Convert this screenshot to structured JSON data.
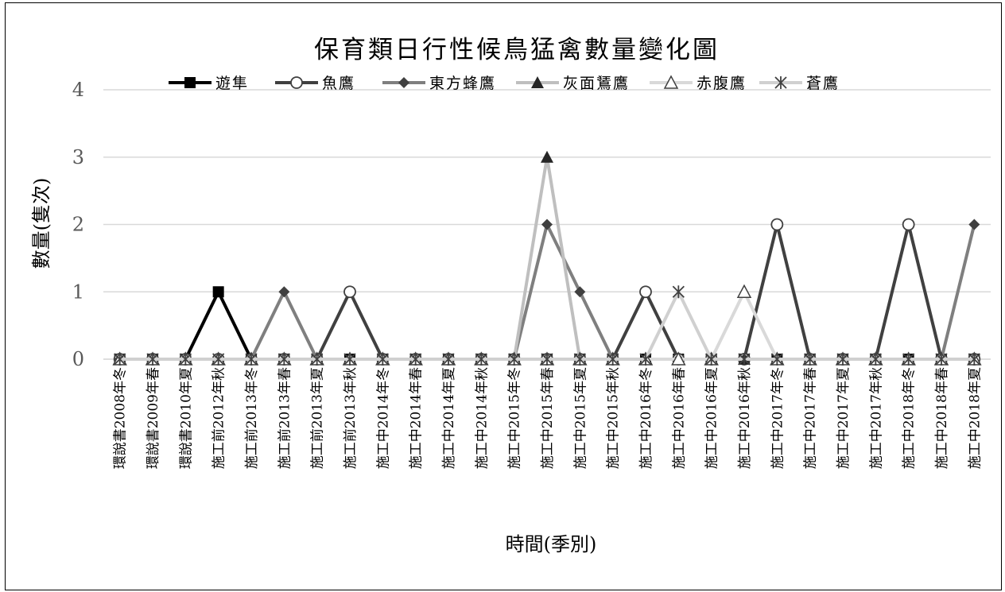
{
  "chart_data": {
    "type": "line",
    "title": "保育類日行性候鳥猛禽數量變化圖",
    "xlabel": "時間(季別)",
    "ylabel": "數量(隻次)",
    "ylim": [
      0,
      4
    ],
    "yticks": [
      "0",
      "1",
      "2",
      "3",
      "4"
    ],
    "grid": true,
    "legend_position": "top",
    "categories": [
      "環說書2008年冬",
      "環說書2009年春",
      "環說書2010年夏",
      "施工前2012年秋",
      "施工前2013年冬",
      "施工前2013年春",
      "施工前2013年夏",
      "施工前2013年秋",
      "施工中2014年冬",
      "施工中2014年春",
      "施工中2014年夏",
      "施工中2014年秋",
      "施工中2015年冬",
      "施工中2015年春",
      "施工中2015年夏",
      "施工中2015年秋",
      "施工中2016年冬",
      "施工中2016年春",
      "施工中2016年夏",
      "施工中2016年秋",
      "施工中2017年冬",
      "施工中2017年春",
      "施工中2017年夏",
      "施工中2017年秋",
      "施工中2018年冬",
      "施工中2018年春",
      "施工中2018年夏"
    ],
    "series": [
      {
        "name": "遊隼",
        "color": "#000000",
        "marker": "square-filled",
        "values": [
          0,
          0,
          0,
          1,
          0,
          0,
          0,
          0,
          0,
          0,
          0,
          0,
          0,
          0,
          0,
          0,
          0,
          0,
          0,
          0,
          0,
          0,
          0,
          0,
          0,
          0,
          0
        ]
      },
      {
        "name": "魚鷹",
        "color": "#404040",
        "marker": "circle-open",
        "values": [
          0,
          0,
          0,
          0,
          0,
          0,
          0,
          1,
          0,
          0,
          0,
          0,
          0,
          0,
          0,
          0,
          1,
          0,
          0,
          0,
          2,
          0,
          0,
          0,
          2,
          0,
          0
        ]
      },
      {
        "name": "東方蜂鷹",
        "color": "#7f7f7f",
        "marker": "diamond-filled",
        "values": [
          0,
          0,
          0,
          0,
          0,
          1,
          0,
          0,
          0,
          0,
          0,
          0,
          0,
          2,
          1,
          0,
          0,
          0,
          0,
          0,
          0,
          0,
          0,
          0,
          0,
          0,
          2
        ]
      },
      {
        "name": "灰面鵟鷹",
        "color": "#bfbfbf",
        "marker": "triangle-filled",
        "values": [
          0,
          0,
          0,
          0,
          0,
          0,
          0,
          0,
          0,
          0,
          0,
          0,
          0,
          3,
          0,
          0,
          0,
          0,
          0,
          0,
          0,
          0,
          0,
          0,
          0,
          0,
          0
        ]
      },
      {
        "name": "赤腹鷹",
        "color": "#d9d9d9",
        "marker": "triangle-open",
        "values": [
          0,
          0,
          0,
          0,
          0,
          0,
          0,
          0,
          0,
          0,
          0,
          0,
          0,
          0,
          0,
          0,
          0,
          0,
          0,
          1,
          0,
          0,
          0,
          0,
          0,
          0,
          0
        ]
      },
      {
        "name": "蒼鷹",
        "color": "#d0d0d0",
        "marker": "asterisk",
        "values": [
          0,
          0,
          0,
          0,
          0,
          0,
          0,
          0,
          0,
          0,
          0,
          0,
          0,
          0,
          0,
          0,
          0,
          1,
          0,
          0,
          0,
          0,
          0,
          0,
          0,
          0,
          0
        ]
      }
    ]
  }
}
